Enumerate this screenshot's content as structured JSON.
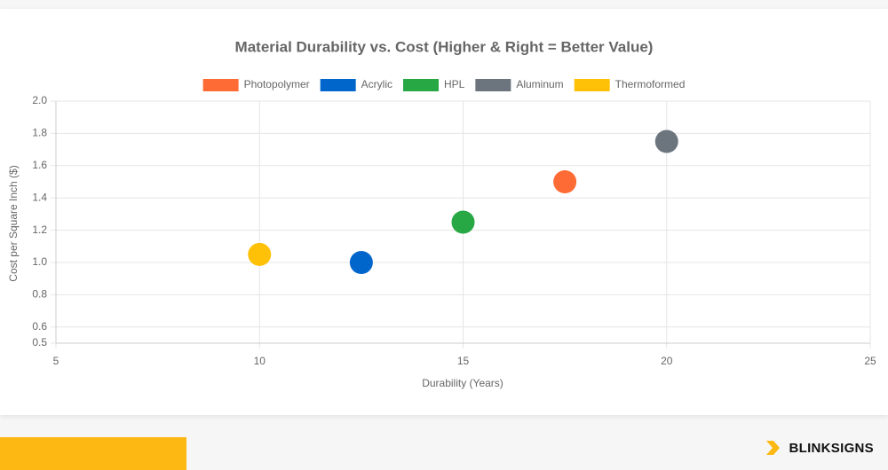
{
  "chart_data": {
    "type": "scatter",
    "title": "Material Durability vs. Cost (Higher & Right = Better Value)",
    "x_label": "Durability (Years)",
    "y_label": "Cost per Square Inch ($)",
    "xlim": [
      5,
      25
    ],
    "xticks": [
      5,
      10,
      15,
      20,
      25
    ],
    "ylim": [
      0.5,
      2.0
    ],
    "yticks": [
      0.5,
      0.6,
      {
        "value": 0.8,
        "label": "0.8"
      },
      {
        "value": 1.0,
        "label": "1.0"
      },
      1.2,
      1.4,
      1.6,
      1.8,
      {
        "value": 2.0,
        "label": "2.0"
      }
    ],
    "grid": true,
    "legend": "top",
    "series": [
      {
        "name": "Photopolymer",
        "color": "#ff6b35",
        "x": [
          17.5
        ],
        "values": [
          1.5
        ]
      },
      {
        "name": "Acrylic",
        "color": "#0066cc",
        "x": [
          12.5
        ],
        "values": [
          1.0
        ]
      },
      {
        "name": "HPL",
        "color": "#28a745",
        "x": [
          15
        ],
        "values": [
          1.25
        ]
      },
      {
        "name": "Aluminum",
        "color": "#6c757d",
        "x": [
          20
        ],
        "values": [
          1.75
        ]
      },
      {
        "name": "Thermoformed",
        "color": "#ffc107",
        "x": [
          10
        ],
        "values": [
          1.05
        ]
      }
    ]
  },
  "brand": "BLINKSIGNS"
}
